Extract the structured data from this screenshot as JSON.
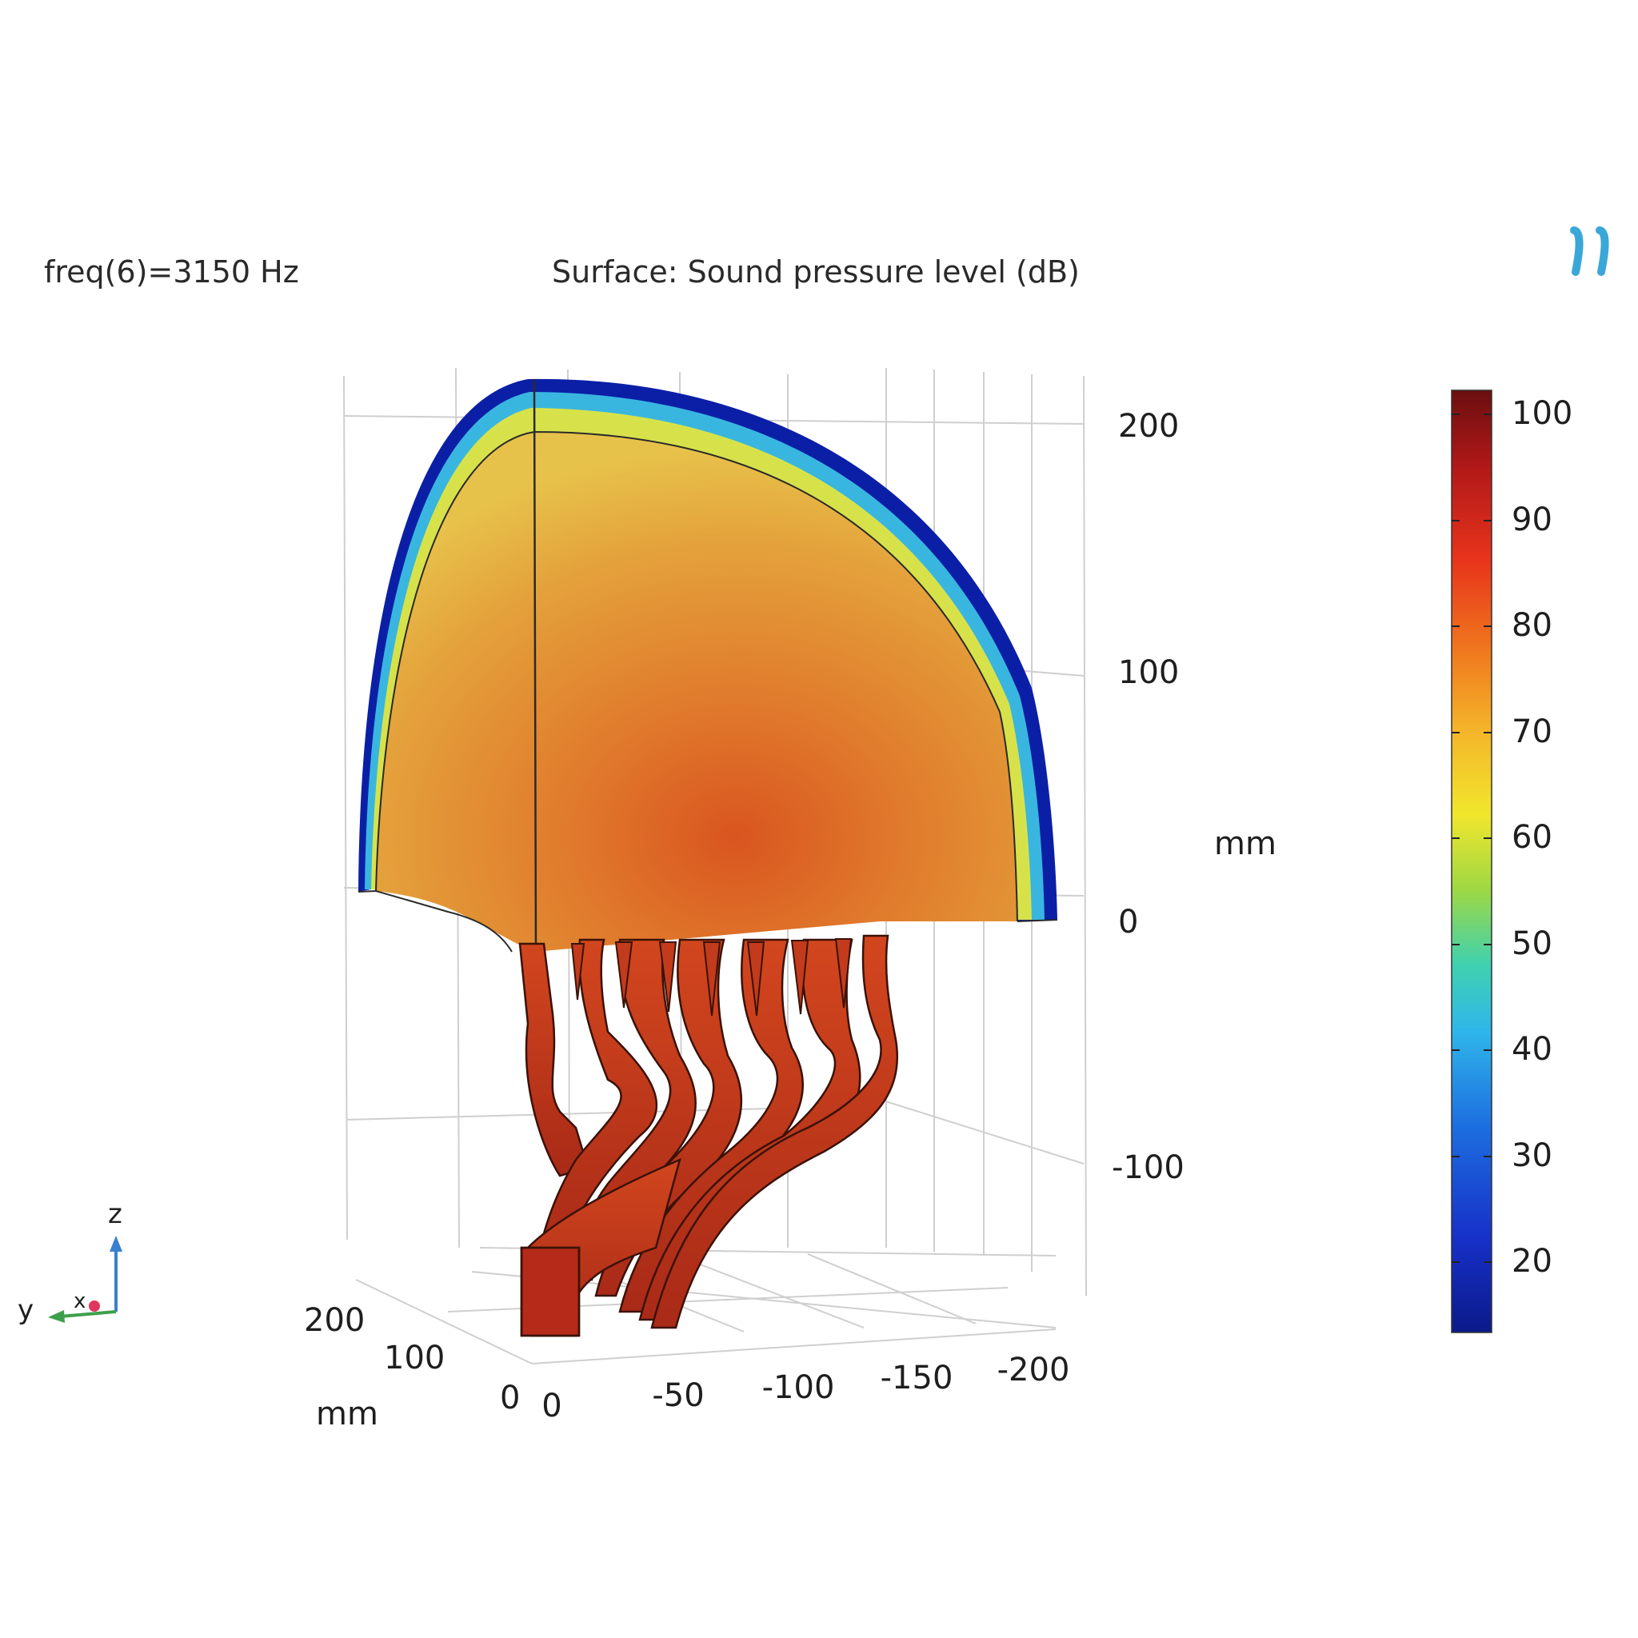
{
  "header": {
    "freq_label": "freq(6)=3150 Hz",
    "surface_label": "Surface: Sound pressure level (dB)"
  },
  "axes": {
    "z_ticks": [
      "200",
      "100",
      "0",
      "-100"
    ],
    "z_unit": "mm",
    "x_ticks": [
      "0",
      "-50",
      "-100",
      "-150",
      "-200"
    ],
    "y_ticks": [
      "200",
      "100",
      "0"
    ],
    "y_unit": "mm"
  },
  "colorbar": {
    "ticks": [
      "100",
      "90",
      "80",
      "70",
      "60",
      "50",
      "40",
      "30",
      "20"
    ],
    "colors": [
      "#6b0f0f",
      "#b01818",
      "#e8341c",
      "#f07a1e",
      "#f4b42a",
      "#f1e62c",
      "#9ed844",
      "#3fd1b0",
      "#2fb6ea",
      "#1d6fe0",
      "#1730c8",
      "#0b1a8a"
    ]
  },
  "triad": {
    "z": "z",
    "y": "y",
    "x": "x"
  },
  "colors": {
    "dome_fill": "#e49e3a",
    "core_hot": "#d9551f",
    "pipes": "#b8301c",
    "rim_outer": "#0b1fa6",
    "rim_mid": "#39b6e0",
    "rim_inner": "#d7e24a",
    "brand_mark": "#3aa7d8"
  }
}
